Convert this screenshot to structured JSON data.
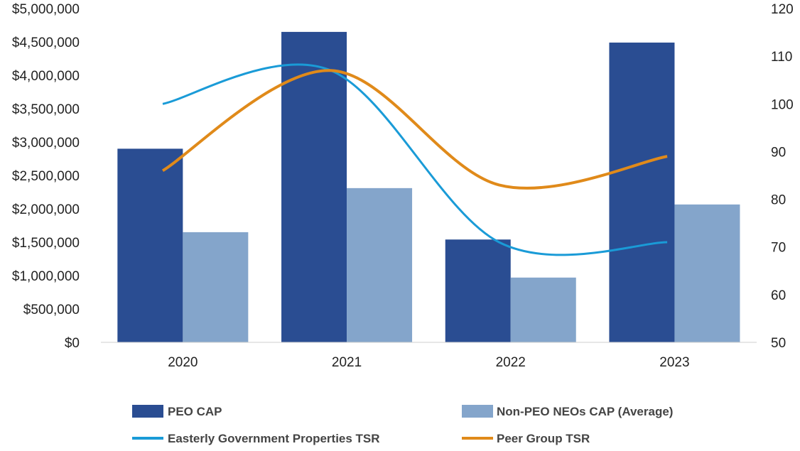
{
  "chart_data": {
    "type": "bar",
    "categories": [
      "2020",
      "2021",
      "2022",
      "2023"
    ],
    "series": [
      {
        "name": "PEO CAP",
        "kind": "bar",
        "axis": "left",
        "color": "#2a4d92",
        "values": [
          2900000,
          4650000,
          1540000,
          4490000
        ]
      },
      {
        "name": "Non-PEO NEOs CAP (Average)",
        "kind": "bar",
        "axis": "left",
        "color": "#84a5cb",
        "values": [
          1650000,
          2310000,
          970000,
          2065000
        ]
      },
      {
        "name": "Easterly Government Properties TSR",
        "kind": "line",
        "axis": "right",
        "color": "#1a9bd7",
        "values": [
          100,
          107,
          71,
          71
        ]
      },
      {
        "name": "Peer Group TSR",
        "kind": "line",
        "axis": "right",
        "color": "#e08a1a",
        "values": [
          86,
          107,
          83,
          89
        ]
      }
    ],
    "left_axis": {
      "min": 0,
      "max": 5000000,
      "ticks": [
        "$0",
        "$500,000",
        "$1,000,000",
        "$1,500,000",
        "$2,000,000",
        "$2,500,000",
        "$3,000,000",
        "$3,500,000",
        "$4,000,000",
        "$4,500,000",
        "$5,000,000"
      ]
    },
    "right_axis": {
      "min": 50,
      "max": 120,
      "ticks": [
        "50",
        "60",
        "70",
        "80",
        "90",
        "100",
        "110",
        "120"
      ]
    },
    "grid": false,
    "legend": "bottom"
  }
}
